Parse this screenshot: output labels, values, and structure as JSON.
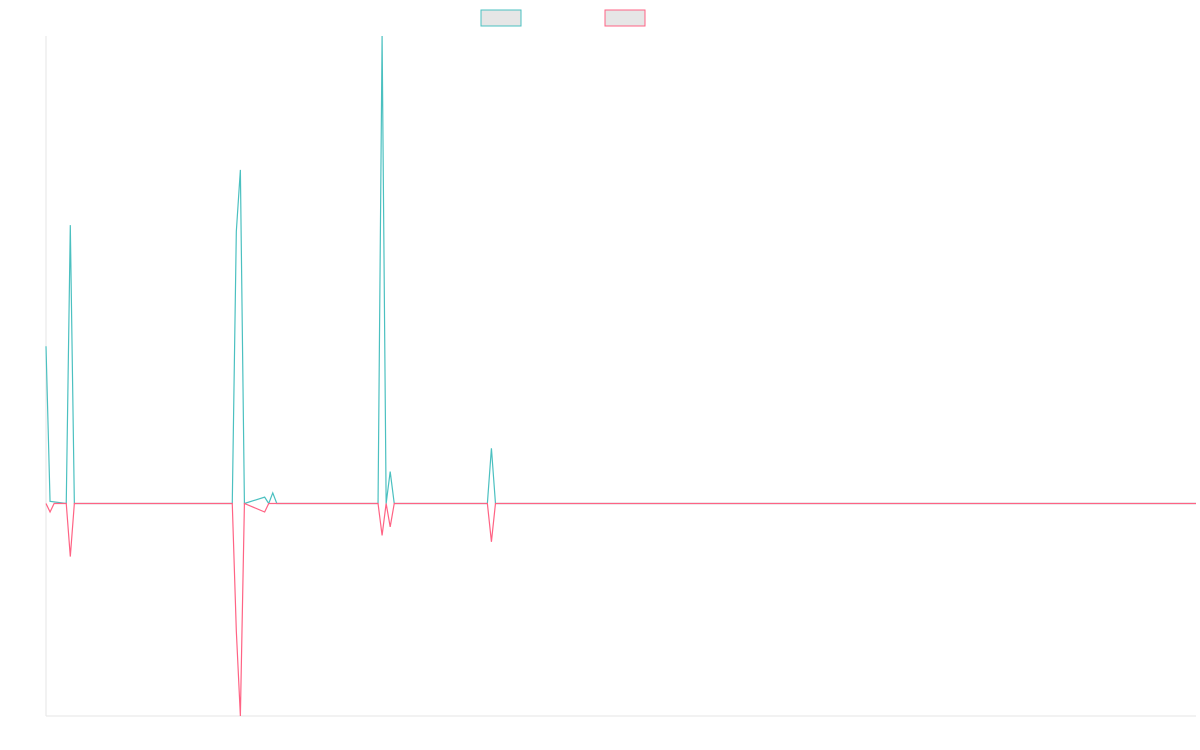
{
  "colors": {
    "series_1": "#4bc0c0",
    "series_2": "#ff6384",
    "axis": "#e5e5e5",
    "legend_fill": "#e6e6e6"
  },
  "chart_data": {
    "type": "line",
    "title": "",
    "xlabel": "",
    "ylabel": "",
    "grid": false,
    "legend_position": "top",
    "x": [
      0,
      1,
      2,
      3,
      4,
      5,
      6,
      7,
      8,
      9,
      10,
      11,
      12,
      13,
      14,
      15,
      16,
      17,
      18,
      19,
      20,
      21,
      22,
      23,
      24,
      25,
      26,
      27,
      28,
      29,
      30,
      31,
      32,
      33,
      34,
      35,
      36,
      37,
      38,
      39,
      40,
      41,
      42,
      43,
      44,
      45,
      46,
      47,
      48,
      49,
      50,
      51,
      52,
      53,
      54,
      55,
      56,
      57,
      58,
      59,
      60,
      61,
      62,
      63,
      64,
      65,
      66,
      67,
      68,
      69,
      70,
      71,
      72,
      73,
      74,
      75,
      76,
      77,
      78,
      79,
      80,
      81,
      82,
      83,
      84,
      85,
      86,
      87,
      88,
      89,
      90,
      91,
      92,
      93,
      94,
      95,
      96,
      97,
      98,
      99,
      100,
      101,
      102,
      103,
      104,
      105,
      106,
      107,
      108,
      109,
      110,
      111,
      112,
      113,
      114,
      115,
      116,
      117,
      118,
      119,
      120,
      121,
      122,
      123,
      124,
      125,
      126,
      127,
      128,
      129,
      130,
      131,
      132,
      133,
      134,
      135,
      136,
      137,
      138,
      139,
      140,
      141,
      142,
      143,
      144,
      145,
      146,
      147,
      148,
      149,
      150,
      151,
      152,
      153,
      154,
      155,
      156,
      157,
      158,
      159,
      160,
      161,
      162,
      163,
      164,
      165,
      166,
      167,
      168,
      169,
      170,
      171,
      172,
      173,
      174,
      175,
      176,
      177,
      178,
      179,
      180,
      181,
      182,
      183,
      184,
      185,
      186,
      187,
      188,
      189,
      190,
      191,
      192,
      193,
      194,
      195,
      196,
      197,
      198,
      199,
      200,
      201,
      202,
      203,
      204,
      205,
      206,
      207,
      208,
      209,
      210,
      211,
      212,
      213,
      214,
      215,
      216,
      217,
      218,
      219,
      220,
      221,
      222,
      223,
      224,
      225,
      226,
      227,
      228,
      229,
      230,
      231,
      232,
      233,
      234,
      235,
      236,
      237,
      238,
      239,
      240,
      241,
      242,
      243,
      244,
      245,
      246,
      247,
      248,
      249,
      250,
      251,
      252,
      253,
      254,
      255,
      256,
      257,
      258,
      259,
      260,
      261,
      262,
      263,
      264,
      265,
      266,
      267,
      268,
      269,
      270,
      271,
      272,
      273,
      274,
      275,
      276,
      277,
      278,
      279,
      280,
      281,
      282,
      283,
      284
    ],
    "xlim": [
      0,
      284
    ],
    "ylim": [
      -1.0,
      2.2
    ],
    "series": [
      {
        "name": "",
        "color": "#4bc0c0",
        "sparse": true,
        "values": {
          "0": 0.74,
          "1": 0.01,
          "5": 0.0,
          "6": 1.31,
          "7": 0.0,
          "12": 0.0,
          "46": 0.0,
          "47": 1.28,
          "48": 1.57,
          "49": 0.0,
          "54": 0.03,
          "55": 0.0,
          "56": 0.05,
          "57": 0.0,
          "82": 0.0,
          "83": 2.2,
          "84": 0.0,
          "85": 0.15,
          "86": 0.0,
          "109": 0.0,
          "110": 0.26,
          "111": 0.0,
          "284": 0.0
        }
      },
      {
        "name": "",
        "color": "#ff6384",
        "sparse": true,
        "values": {
          "0": 0.0,
          "1": -0.04,
          "2": 0.0,
          "5": 0.0,
          "6": -0.25,
          "7": 0.0,
          "12": 0.0,
          "46": 0.0,
          "47": -0.6,
          "48": -1.0,
          "49": 0.0,
          "54": -0.04,
          "55": 0.0,
          "82": 0.0,
          "83": -0.15,
          "84": 0.0,
          "85": -0.11,
          "86": 0.0,
          "109": 0.0,
          "110": -0.18,
          "111": 0.0,
          "284": 0.0
        }
      }
    ]
  }
}
